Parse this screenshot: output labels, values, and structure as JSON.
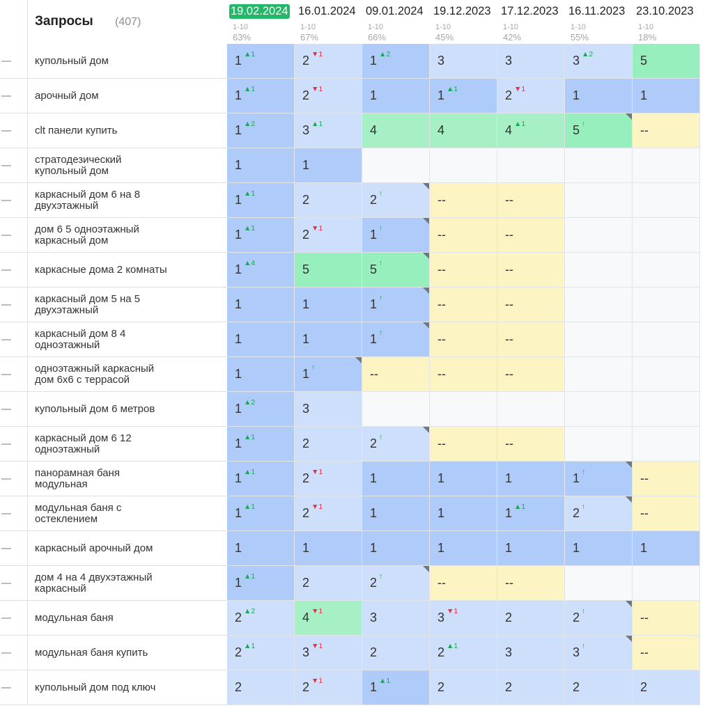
{
  "header": {
    "title": "Запросы",
    "count": "(407)"
  },
  "columns": [
    {
      "date": "19.02.2024",
      "range": "1-10",
      "pct": "63%",
      "active": true
    },
    {
      "date": "16.01.2024",
      "range": "1-10",
      "pct": "67%",
      "active": false
    },
    {
      "date": "09.01.2024",
      "range": "1-10",
      "pct": "66%",
      "active": false
    },
    {
      "date": "19.12.2023",
      "range": "1-10",
      "pct": "45%",
      "active": false
    },
    {
      "date": "17.12.2023",
      "range": "1-10",
      "pct": "42%",
      "active": false
    },
    {
      "date": "16.11.2023",
      "range": "1-10",
      "pct": "55%",
      "active": false
    },
    {
      "date": "23.10.2023",
      "range": "1-10",
      "pct": "18%",
      "active": false
    }
  ],
  "colors": {
    "active_date": "#22b868",
    "top1": "#aecbfa",
    "top3": "#cddffb",
    "top5": "#97efbe",
    "no_position": "#fdf4c4",
    "delta_up": "#1aa85a",
    "delta_down": "#e0334a"
  },
  "rows": [
    {
      "query": "купольный дом",
      "cells": [
        {
          "v": "1",
          "d": "▲1",
          "dir": "up",
          "c": "top1"
        },
        {
          "v": "2",
          "d": "▼1",
          "dir": "down",
          "c": "top3"
        },
        {
          "v": "1",
          "d": "▲2",
          "dir": "up",
          "c": "top1"
        },
        {
          "v": "3",
          "d": "",
          "dir": "",
          "c": "top3"
        },
        {
          "v": "3",
          "d": "",
          "dir": "",
          "c": "top3"
        },
        {
          "v": "3",
          "d": "▲2",
          "dir": "up",
          "c": "top3"
        },
        {
          "v": "5",
          "d": "",
          "dir": "",
          "c": "top5"
        }
      ]
    },
    {
      "query": "арочный дом",
      "cells": [
        {
          "v": "1",
          "d": "▲1",
          "dir": "up",
          "c": "top1"
        },
        {
          "v": "2",
          "d": "▼1",
          "dir": "down",
          "c": "top3"
        },
        {
          "v": "1",
          "d": "",
          "dir": "",
          "c": "top1"
        },
        {
          "v": "1",
          "d": "▲1",
          "dir": "up",
          "c": "top1"
        },
        {
          "v": "2",
          "d": "▼1",
          "dir": "down",
          "c": "top3"
        },
        {
          "v": "1",
          "d": "",
          "dir": "",
          "c": "top1"
        },
        {
          "v": "1",
          "d": "",
          "dir": "",
          "c": "top1"
        }
      ]
    },
    {
      "query": "clt панели купить",
      "cells": [
        {
          "v": "1",
          "d": "▲2",
          "dir": "up",
          "c": "top1"
        },
        {
          "v": "3",
          "d": "▲1",
          "dir": "up",
          "c": "top3"
        },
        {
          "v": "4",
          "d": "",
          "dir": "",
          "c": "green"
        },
        {
          "v": "4",
          "d": "",
          "dir": "",
          "c": "green"
        },
        {
          "v": "4",
          "d": "▲1",
          "dir": "up",
          "c": "green"
        },
        {
          "v": "5",
          "d": "↑",
          "dir": "up",
          "c": "top5",
          "corner": true
        },
        {
          "v": "--",
          "d": "",
          "dir": "",
          "c": "yellow"
        }
      ]
    },
    {
      "query": "стратодезический\nкупольный дом",
      "cells": [
        {
          "v": "1",
          "d": "",
          "dir": "",
          "c": "top1"
        },
        {
          "v": "1",
          "d": "",
          "dir": "",
          "c": "top1"
        },
        {
          "v": "",
          "d": "",
          "dir": "",
          "c": "empty"
        },
        {
          "v": "",
          "d": "",
          "dir": "",
          "c": "empty"
        },
        {
          "v": "",
          "d": "",
          "dir": "",
          "c": "empty"
        },
        {
          "v": "",
          "d": "",
          "dir": "",
          "c": "empty"
        },
        {
          "v": "",
          "d": "",
          "dir": "",
          "c": "empty"
        }
      ]
    },
    {
      "query": "каркасный дом 6 на 8\nдвухэтажный",
      "cells": [
        {
          "v": "1",
          "d": "▲1",
          "dir": "up",
          "c": "top1"
        },
        {
          "v": "2",
          "d": "",
          "dir": "",
          "c": "top3"
        },
        {
          "v": "2",
          "d": "↑",
          "dir": "up",
          "c": "top3",
          "corner": true
        },
        {
          "v": "--",
          "d": "",
          "dir": "",
          "c": "yellow"
        },
        {
          "v": "--",
          "d": "",
          "dir": "",
          "c": "yellow"
        },
        {
          "v": "",
          "d": "",
          "dir": "",
          "c": "empty"
        },
        {
          "v": "",
          "d": "",
          "dir": "",
          "c": "empty"
        }
      ]
    },
    {
      "query": "дом 6 5 одноэтажный\nкаркасный дом",
      "cells": [
        {
          "v": "1",
          "d": "▲1",
          "dir": "up",
          "c": "top1"
        },
        {
          "v": "2",
          "d": "▼1",
          "dir": "down",
          "c": "top3"
        },
        {
          "v": "1",
          "d": "↑",
          "dir": "up",
          "c": "top1",
          "corner": true
        },
        {
          "v": "--",
          "d": "",
          "dir": "",
          "c": "yellow"
        },
        {
          "v": "--",
          "d": "",
          "dir": "",
          "c": "yellow"
        },
        {
          "v": "",
          "d": "",
          "dir": "",
          "c": "empty"
        },
        {
          "v": "",
          "d": "",
          "dir": "",
          "c": "empty"
        }
      ]
    },
    {
      "query": "каркасные дома 2 комнаты",
      "cells": [
        {
          "v": "1",
          "d": "▲4",
          "dir": "up",
          "c": "top1"
        },
        {
          "v": "5",
          "d": "",
          "dir": "",
          "c": "top5"
        },
        {
          "v": "5",
          "d": "↑",
          "dir": "up",
          "c": "top5",
          "corner": true
        },
        {
          "v": "--",
          "d": "",
          "dir": "",
          "c": "yellow"
        },
        {
          "v": "--",
          "d": "",
          "dir": "",
          "c": "yellow"
        },
        {
          "v": "",
          "d": "",
          "dir": "",
          "c": "empty"
        },
        {
          "v": "",
          "d": "",
          "dir": "",
          "c": "empty"
        }
      ]
    },
    {
      "query": "каркасный дом 5 на 5\nдвухэтажный",
      "cells": [
        {
          "v": "1",
          "d": "",
          "dir": "",
          "c": "top1"
        },
        {
          "v": "1",
          "d": "",
          "dir": "",
          "c": "top1"
        },
        {
          "v": "1",
          "d": "↑",
          "dir": "up",
          "c": "top1",
          "corner": true
        },
        {
          "v": "--",
          "d": "",
          "dir": "",
          "c": "yellow"
        },
        {
          "v": "--",
          "d": "",
          "dir": "",
          "c": "yellow"
        },
        {
          "v": "",
          "d": "",
          "dir": "",
          "c": "empty"
        },
        {
          "v": "",
          "d": "",
          "dir": "",
          "c": "empty"
        }
      ]
    },
    {
      "query": "каркасный дом 8 4\nодноэтажный",
      "cells": [
        {
          "v": "1",
          "d": "",
          "dir": "",
          "c": "top1"
        },
        {
          "v": "1",
          "d": "",
          "dir": "",
          "c": "top1"
        },
        {
          "v": "1",
          "d": "↑",
          "dir": "up",
          "c": "top1",
          "corner": true
        },
        {
          "v": "--",
          "d": "",
          "dir": "",
          "c": "yellow"
        },
        {
          "v": "--",
          "d": "",
          "dir": "",
          "c": "yellow"
        },
        {
          "v": "",
          "d": "",
          "dir": "",
          "c": "empty"
        },
        {
          "v": "",
          "d": "",
          "dir": "",
          "c": "empty"
        }
      ]
    },
    {
      "query": "одноэтажный каркасный\nдом 6х6 с террасой",
      "cells": [
        {
          "v": "1",
          "d": "",
          "dir": "",
          "c": "top1"
        },
        {
          "v": "1",
          "d": "↑",
          "dir": "up",
          "c": "top1",
          "corner": true
        },
        {
          "v": "--",
          "d": "",
          "dir": "",
          "c": "yellow"
        },
        {
          "v": "--",
          "d": "",
          "dir": "",
          "c": "yellow"
        },
        {
          "v": "--",
          "d": "",
          "dir": "",
          "c": "yellow"
        },
        {
          "v": "",
          "d": "",
          "dir": "",
          "c": "empty"
        },
        {
          "v": "",
          "d": "",
          "dir": "",
          "c": "empty"
        }
      ]
    },
    {
      "query": "купольный дом 6 метров",
      "cells": [
        {
          "v": "1",
          "d": "▲2",
          "dir": "up",
          "c": "top1"
        },
        {
          "v": "3",
          "d": "",
          "dir": "",
          "c": "top3"
        },
        {
          "v": "",
          "d": "",
          "dir": "",
          "c": "empty"
        },
        {
          "v": "",
          "d": "",
          "dir": "",
          "c": "empty"
        },
        {
          "v": "",
          "d": "",
          "dir": "",
          "c": "empty"
        },
        {
          "v": "",
          "d": "",
          "dir": "",
          "c": "empty"
        },
        {
          "v": "",
          "d": "",
          "dir": "",
          "c": "empty"
        }
      ]
    },
    {
      "query": "каркасный дом 6 12\nодноэтажный",
      "cells": [
        {
          "v": "1",
          "d": "▲1",
          "dir": "up",
          "c": "top1"
        },
        {
          "v": "2",
          "d": "",
          "dir": "",
          "c": "top3"
        },
        {
          "v": "2",
          "d": "↑",
          "dir": "up",
          "c": "top3",
          "corner": true
        },
        {
          "v": "--",
          "d": "",
          "dir": "",
          "c": "yellow"
        },
        {
          "v": "--",
          "d": "",
          "dir": "",
          "c": "yellow"
        },
        {
          "v": "",
          "d": "",
          "dir": "",
          "c": "empty"
        },
        {
          "v": "",
          "d": "",
          "dir": "",
          "c": "empty"
        }
      ]
    },
    {
      "query": "панорамная баня\nмодульная",
      "cells": [
        {
          "v": "1",
          "d": "▲1",
          "dir": "up",
          "c": "top1"
        },
        {
          "v": "2",
          "d": "▼1",
          "dir": "down",
          "c": "top3"
        },
        {
          "v": "1",
          "d": "",
          "dir": "",
          "c": "top1"
        },
        {
          "v": "1",
          "d": "",
          "dir": "",
          "c": "top1"
        },
        {
          "v": "1",
          "d": "",
          "dir": "",
          "c": "top1"
        },
        {
          "v": "1",
          "d": "↑",
          "dir": "up",
          "c": "top1",
          "corner": true
        },
        {
          "v": "--",
          "d": "",
          "dir": "",
          "c": "yellow"
        }
      ]
    },
    {
      "query": "модульная баня с\nостеклением",
      "cells": [
        {
          "v": "1",
          "d": "▲1",
          "dir": "up",
          "c": "top1"
        },
        {
          "v": "2",
          "d": "▼1",
          "dir": "down",
          "c": "top3"
        },
        {
          "v": "1",
          "d": "",
          "dir": "",
          "c": "top1"
        },
        {
          "v": "1",
          "d": "",
          "dir": "",
          "c": "top1"
        },
        {
          "v": "1",
          "d": "▲1",
          "dir": "up",
          "c": "top1"
        },
        {
          "v": "2",
          "d": "↑",
          "dir": "up",
          "c": "top3",
          "corner": true
        },
        {
          "v": "--",
          "d": "",
          "dir": "",
          "c": "yellow"
        }
      ]
    },
    {
      "query": "каркасный арочный дом",
      "cells": [
        {
          "v": "1",
          "d": "",
          "dir": "",
          "c": "top1"
        },
        {
          "v": "1",
          "d": "",
          "dir": "",
          "c": "top1"
        },
        {
          "v": "1",
          "d": "",
          "dir": "",
          "c": "top1"
        },
        {
          "v": "1",
          "d": "",
          "dir": "",
          "c": "top1"
        },
        {
          "v": "1",
          "d": "",
          "dir": "",
          "c": "top1"
        },
        {
          "v": "1",
          "d": "",
          "dir": "",
          "c": "top1"
        },
        {
          "v": "1",
          "d": "",
          "dir": "",
          "c": "top1"
        }
      ]
    },
    {
      "query": "дом 4 на 4 двухэтажный\nкаркасный",
      "cells": [
        {
          "v": "1",
          "d": "▲1",
          "dir": "up",
          "c": "top1"
        },
        {
          "v": "2",
          "d": "",
          "dir": "",
          "c": "top3"
        },
        {
          "v": "2",
          "d": "↑",
          "dir": "up",
          "c": "top3",
          "corner": true
        },
        {
          "v": "--",
          "d": "",
          "dir": "",
          "c": "yellow"
        },
        {
          "v": "--",
          "d": "",
          "dir": "",
          "c": "yellow"
        },
        {
          "v": "",
          "d": "",
          "dir": "",
          "c": "empty"
        },
        {
          "v": "",
          "d": "",
          "dir": "",
          "c": "empty"
        }
      ]
    },
    {
      "query": "модульная баня",
      "cells": [
        {
          "v": "2",
          "d": "▲2",
          "dir": "up",
          "c": "top3"
        },
        {
          "v": "4",
          "d": "▼1",
          "dir": "down",
          "c": "green"
        },
        {
          "v": "3",
          "d": "",
          "dir": "",
          "c": "top3"
        },
        {
          "v": "3",
          "d": "▼1",
          "dir": "down",
          "c": "top3"
        },
        {
          "v": "2",
          "d": "",
          "dir": "",
          "c": "top3"
        },
        {
          "v": "2",
          "d": "↑",
          "dir": "up",
          "c": "top3",
          "corner": true
        },
        {
          "v": "--",
          "d": "",
          "dir": "",
          "c": "yellow"
        }
      ]
    },
    {
      "query": "модульная баня купить",
      "cells": [
        {
          "v": "2",
          "d": "▲1",
          "dir": "up",
          "c": "top3"
        },
        {
          "v": "3",
          "d": "▼1",
          "dir": "down",
          "c": "top3"
        },
        {
          "v": "2",
          "d": "",
          "dir": "",
          "c": "top3"
        },
        {
          "v": "2",
          "d": "▲1",
          "dir": "up",
          "c": "top3"
        },
        {
          "v": "3",
          "d": "",
          "dir": "",
          "c": "top3"
        },
        {
          "v": "3",
          "d": "↑",
          "dir": "up",
          "c": "top3",
          "corner": true
        },
        {
          "v": "--",
          "d": "",
          "dir": "",
          "c": "yellow"
        }
      ]
    },
    {
      "query": "купольный дом под ключ",
      "cells": [
        {
          "v": "2",
          "d": "",
          "dir": "",
          "c": "top3"
        },
        {
          "v": "2",
          "d": "▼1",
          "dir": "down",
          "c": "top3"
        },
        {
          "v": "1",
          "d": "▲1",
          "dir": "up",
          "c": "top1"
        },
        {
          "v": "2",
          "d": "",
          "dir": "",
          "c": "top3"
        },
        {
          "v": "2",
          "d": "",
          "dir": "",
          "c": "top3"
        },
        {
          "v": "2",
          "d": "",
          "dir": "",
          "c": "top3"
        },
        {
          "v": "2",
          "d": "",
          "dir": "",
          "c": "top3"
        }
      ]
    }
  ]
}
